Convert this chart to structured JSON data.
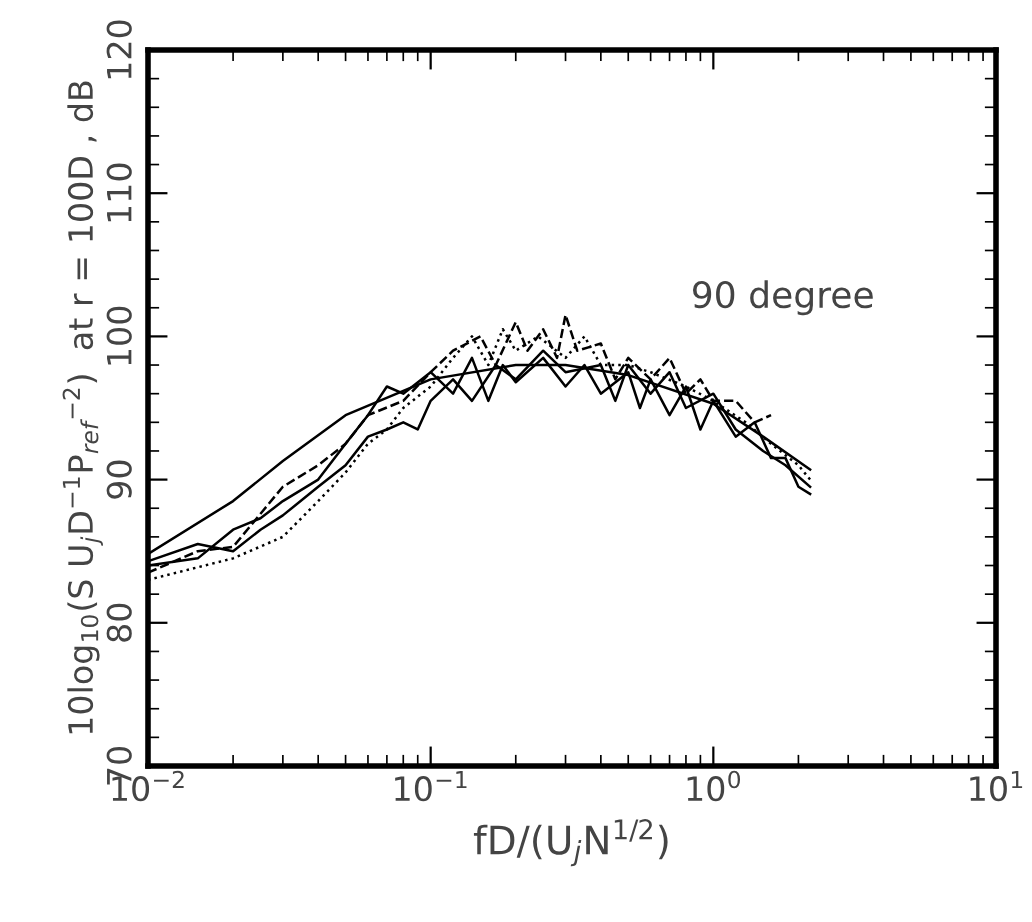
{
  "chart_data": {
    "type": "line",
    "xlabel": "fD/(U$_{j}$N$^{1/2}$)",
    "ylabel": "10log$_{10}$(S U$_{j}$D$^{−1}$P$_{ref}$$^{−2}$)  at r = 100D , dB",
    "annotations": [
      "90 degree"
    ],
    "log": "x",
    "xlim": [
      0.01,
      10
    ],
    "ylim": [
      70,
      120
    ],
    "xticks": [
      {
        "value": 0.01,
        "label": "10$^{−2}$"
      },
      {
        "value": 0.1,
        "label": "10$^{−1}$"
      },
      {
        "value": 1,
        "label": "10$^{0}$"
      },
      {
        "value": 10,
        "label": "10$^{1}$"
      }
    ],
    "yticks": [
      70,
      80,
      90,
      100,
      110,
      120
    ],
    "grid": false,
    "legend": false,
    "series": [
      {
        "color": "#000000",
        "line_style": "solid",
        "x": [
          0.01,
          0.02,
          0.03,
          0.05,
          0.1,
          0.2,
          0.3,
          0.5,
          1.0,
          1.5,
          2.2
        ],
        "values": [
          84.8,
          88.5,
          91.3,
          94.5,
          97,
          98,
          98,
          97.3,
          95.3,
          93,
          90.7
        ]
      },
      {
        "color": "#000000",
        "line_style": "solid",
        "x": [
          0.01,
          0.015,
          0.02,
          0.025,
          0.03,
          0.04,
          0.05,
          0.06,
          0.07,
          0.08,
          0.1,
          0.12,
          0.14,
          0.16,
          0.18,
          0.2,
          0.25,
          0.3,
          0.35,
          0.4,
          0.5,
          0.55,
          0.6,
          0.7,
          0.8,
          0.9,
          1.0,
          1.2,
          1.4,
          1.6,
          1.8,
          2.0,
          2.2
        ],
        "values": [
          84.0,
          84.5,
          86.5,
          87.3,
          88.5,
          90.0,
          92.5,
          94.5,
          96.5,
          96,
          97.5,
          96,
          98.5,
          95.5,
          98,
          96.8,
          98.5,
          96.5,
          98,
          96,
          97.5,
          95,
          97,
          94.5,
          96.5,
          93.5,
          95.5,
          93,
          94,
          91.5,
          91.5,
          89.5,
          89
        ]
      },
      {
        "color": "#000000",
        "line_style": "dashed",
        "x": [
          0.01,
          0.015,
          0.02,
          0.03,
          0.04,
          0.05,
          0.06,
          0.08,
          0.1,
          0.12,
          0.15,
          0.17,
          0.2,
          0.22,
          0.25,
          0.28,
          0.3,
          0.33,
          0.4,
          0.45,
          0.5,
          0.6,
          0.7,
          0.8,
          0.9,
          1.0,
          1.2,
          1.4,
          1.6
        ],
        "values": [
          83.5,
          85,
          85.3,
          89.5,
          91,
          92.5,
          94.5,
          95.5,
          97.5,
          99,
          100,
          98,
          101,
          99,
          100.5,
          98.5,
          101.5,
          99,
          99.5,
          97,
          98.5,
          97,
          98.5,
          96,
          97,
          95.5,
          95.5,
          94,
          94.5
        ]
      },
      {
        "color": "#000000",
        "line_style": "dotted",
        "x": [
          0.01,
          0.02,
          0.03,
          0.04,
          0.05,
          0.06,
          0.07,
          0.08,
          0.1,
          0.12,
          0.14,
          0.16,
          0.18,
          0.2,
          0.24,
          0.3,
          0.35,
          0.4,
          0.5,
          0.6,
          0.8,
          1.0,
          1.3,
          1.6,
          2.0,
          2.2
        ],
        "values": [
          83,
          84.5,
          86,
          88.5,
          90.5,
          92.5,
          93.5,
          95,
          96.5,
          98.5,
          100,
          98,
          100.5,
          99,
          100,
          98.5,
          100,
          98,
          98,
          97.5,
          96.5,
          95.5,
          94,
          92.5,
          91,
          90
        ]
      },
      {
        "color": "#000000",
        "line_style": "solid",
        "x": [
          0.01,
          0.015,
          0.02,
          0.025,
          0.03,
          0.04,
          0.05,
          0.06,
          0.07,
          0.08,
          0.09,
          0.1,
          0.12,
          0.14,
          0.17,
          0.2,
          0.25,
          0.3,
          0.4,
          0.45,
          0.5,
          0.6,
          0.7,
          0.8,
          1.0,
          1.2,
          1.5,
          1.8,
          2.2
        ],
        "values": [
          84.3,
          85.5,
          85,
          86.5,
          87.5,
          89.5,
          91,
          93,
          93.5,
          94,
          93.5,
          95.5,
          97,
          95.5,
          98,
          97,
          99,
          97.5,
          98,
          95.5,
          98,
          96,
          97.5,
          95,
          96,
          93.5,
          92,
          91,
          89.5
        ]
      }
    ]
  }
}
